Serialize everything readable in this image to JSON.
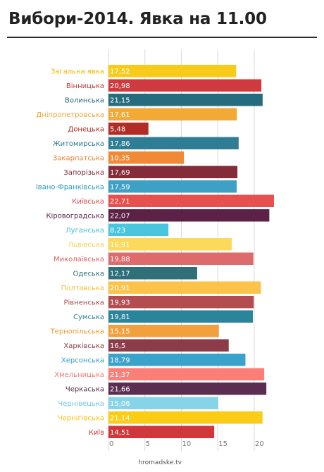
{
  "header": {
    "title": "Вибори-2014. Явка на 11.00"
  },
  "footer": {
    "source": "hromadske.tv"
  },
  "chart_data": {
    "type": "bar",
    "orientation": "horizontal",
    "title": "Вибори-2014. Явка на 11.00",
    "xlim": [
      0,
      22.71
    ],
    "xticks": [
      0,
      5,
      10,
      15,
      20
    ],
    "grid": true,
    "categories": [
      "Загальна явка",
      "Вінницька",
      "Волинська",
      "Дніпропетровська",
      "Донецька",
      "Житомирська",
      "Закарпатська",
      "Запорізька",
      "Івано-Франківська",
      "Київська",
      "Кіровоградська",
      "Луганська",
      "Львівська",
      "Миколаївська",
      "Одеська",
      "Полтавська",
      "Рівненська",
      "Сумська",
      "Тернопільська",
      "Харківська",
      "Херсонська",
      "Хмельницька",
      "Черкаська",
      "Чернівецька",
      "Чернігівська",
      "Київ"
    ],
    "labels": [
      "17,52",
      "20,98",
      "21,15",
      "17,61",
      "5,48",
      "17,86",
      "10,35",
      "17,69",
      "17,59",
      "22,71",
      "22,07",
      "8,23",
      "16,91",
      "19,88",
      "12,17",
      "20,91",
      "19,93",
      "19,81",
      "15,15",
      "16,5",
      "18,79",
      "21,37",
      "21,66",
      "15,06",
      "21,14",
      "14,51"
    ],
    "values": [
      17.52,
      20.98,
      21.15,
      17.61,
      5.48,
      17.86,
      10.35,
      17.69,
      17.59,
      22.71,
      22.07,
      8.23,
      16.91,
      19.88,
      12.17,
      20.91,
      19.93,
      19.81,
      15.15,
      16.5,
      18.79,
      21.37,
      21.66,
      15.06,
      21.14,
      14.51
    ],
    "colors": [
      "#f9cb19",
      "#cf3a3e",
      "#276b7e",
      "#f2a935",
      "#b22b25",
      "#2f7d95",
      "#f08a37",
      "#842c39",
      "#3da0c4",
      "#e7504e",
      "#5b2146",
      "#4ac5de",
      "#fbd95c",
      "#dd6b6b",
      "#2e6f7a",
      "#fbc34a",
      "#b44d4f",
      "#2a849a",
      "#f2a03b",
      "#8c3c49",
      "#3aa2cb",
      "#fb7f78",
      "#5b2d50",
      "#85d4e8",
      "#fbcc16",
      "#d1363a"
    ],
    "label_colors": [
      "#f3b900",
      "#c8383c",
      "#256a7c",
      "#eea330",
      "#a82a24",
      "#2a7a91",
      "#ec8533",
      "#802b37",
      "#2b98bf",
      "#e04848",
      "#561f43",
      "#41c0d9",
      "#f4d04a",
      "#d56262",
      "#2c6b76",
      "#f6bb3b",
      "#ae4a4c",
      "#27829a",
      "#ee9a36",
      "#893a47",
      "#379dc4",
      "#f6776f",
      "#552b4b",
      "#6fc6dc",
      "#f2c20e",
      "#c9333a"
    ]
  }
}
